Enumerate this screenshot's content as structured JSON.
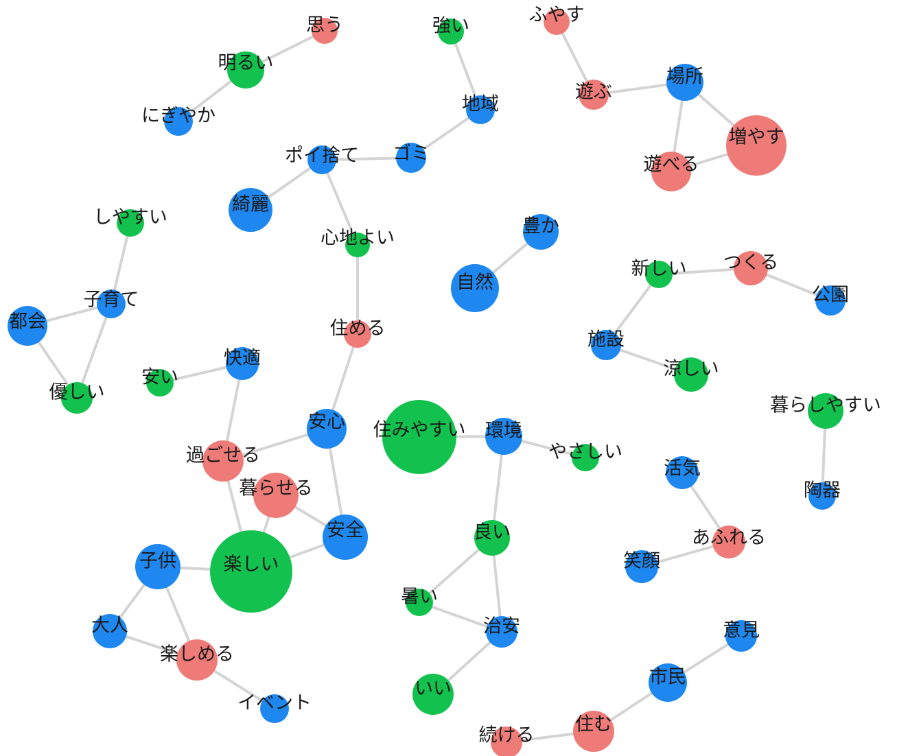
{
  "colors": {
    "noun": "#1e88f0",
    "verb": "#ee7b78",
    "adjective": "#13c24e",
    "edge": "#d4d4d4"
  },
  "nodes": [
    {
      "id": "omou",
      "label": "思う",
      "type": "verb"
    },
    {
      "id": "akarui",
      "label": "明るい",
      "type": "adjective"
    },
    {
      "id": "nigiyaka",
      "label": "にぎやか",
      "type": "noun"
    },
    {
      "id": "tsuyoi",
      "label": "強い",
      "type": "adjective"
    },
    {
      "id": "chiiki",
      "label": "地域",
      "type": "noun"
    },
    {
      "id": "gomi",
      "label": "ゴミ",
      "type": "noun"
    },
    {
      "id": "poisute",
      "label": "ポイ捨て",
      "type": "noun"
    },
    {
      "id": "kirei",
      "label": "綺麗",
      "type": "noun"
    },
    {
      "id": "kokochiyoi",
      "label": "心地よい",
      "type": "adjective"
    },
    {
      "id": "sumeru",
      "label": "住める",
      "type": "verb"
    },
    {
      "id": "anshin",
      "label": "安心",
      "type": "noun"
    },
    {
      "id": "fuyasu",
      "label": "ふやす",
      "type": "verb"
    },
    {
      "id": "asobu",
      "label": "遊ぶ",
      "type": "verb"
    },
    {
      "id": "basho",
      "label": "場所",
      "type": "noun"
    },
    {
      "id": "fuyasu2",
      "label": "増やす",
      "type": "verb"
    },
    {
      "id": "asoberu",
      "label": "遊べる",
      "type": "verb"
    },
    {
      "id": "shiyasui",
      "label": "しやすい",
      "type": "adjective"
    },
    {
      "id": "kosodate",
      "label": "子育て",
      "type": "noun"
    },
    {
      "id": "tokai",
      "label": "都会",
      "type": "noun"
    },
    {
      "id": "yasashii1",
      "label": "優しい",
      "type": "adjective"
    },
    {
      "id": "yutaka",
      "label": "豊か",
      "type": "noun"
    },
    {
      "id": "shizen",
      "label": "自然",
      "type": "noun"
    },
    {
      "id": "atarashii",
      "label": "新しい",
      "type": "adjective"
    },
    {
      "id": "tsukuru",
      "label": "つくる",
      "type": "verb"
    },
    {
      "id": "kouen",
      "label": "公園",
      "type": "noun"
    },
    {
      "id": "shisetsu",
      "label": "施設",
      "type": "noun"
    },
    {
      "id": "suzushii",
      "label": "涼しい",
      "type": "adjective"
    },
    {
      "id": "yasui",
      "label": "安い",
      "type": "adjective"
    },
    {
      "id": "kaiteki",
      "label": "快適",
      "type": "noun"
    },
    {
      "id": "sugoseru",
      "label": "過ごせる",
      "type": "verb"
    },
    {
      "id": "kuraseru",
      "label": "暮らせる",
      "type": "verb"
    },
    {
      "id": "anzen",
      "label": "安全",
      "type": "noun"
    },
    {
      "id": "tanoshii",
      "label": "楽しい",
      "type": "adjective"
    },
    {
      "id": "sumiyasui",
      "label": "住みやすい",
      "type": "adjective"
    },
    {
      "id": "kankyou",
      "label": "環境",
      "type": "noun"
    },
    {
      "id": "yasashii2",
      "label": "やさしい",
      "type": "adjective"
    },
    {
      "id": "yoi",
      "label": "良い",
      "type": "adjective"
    },
    {
      "id": "atsui",
      "label": "暑い",
      "type": "adjective"
    },
    {
      "id": "chian",
      "label": "治安",
      "type": "noun"
    },
    {
      "id": "ii",
      "label": "いい",
      "type": "adjective"
    },
    {
      "id": "kodomo",
      "label": "子供",
      "type": "noun"
    },
    {
      "id": "otona",
      "label": "大人",
      "type": "noun"
    },
    {
      "id": "tanoshimeru",
      "label": "楽しめる",
      "type": "verb"
    },
    {
      "id": "ibento",
      "label": "イベント",
      "type": "noun"
    },
    {
      "id": "kurashiyasui",
      "label": "暮らしやすい",
      "type": "adjective"
    },
    {
      "id": "touki",
      "label": "陶器",
      "type": "noun"
    },
    {
      "id": "kakki",
      "label": "活気",
      "type": "noun"
    },
    {
      "id": "afureru",
      "label": "あふれる",
      "type": "verb"
    },
    {
      "id": "egao",
      "label": "笑顔",
      "type": "noun"
    },
    {
      "id": "iken",
      "label": "意見",
      "type": "noun"
    },
    {
      "id": "shimin",
      "label": "市民",
      "type": "noun"
    },
    {
      "id": "sumu",
      "label": "住む",
      "type": "verb"
    },
    {
      "id": "tsuzukeru",
      "label": "続ける",
      "type": "verb"
    }
  ],
  "edges": [
    [
      "omou",
      "akarui"
    ],
    [
      "akarui",
      "nigiyaka"
    ],
    [
      "tsuyoi",
      "chiiki"
    ],
    [
      "chiiki",
      "gomi"
    ],
    [
      "gomi",
      "poisute"
    ],
    [
      "poisute",
      "kirei"
    ],
    [
      "poisute",
      "kokochiyoi"
    ],
    [
      "kokochiyoi",
      "sumeru"
    ],
    [
      "sumeru",
      "anshin"
    ],
    [
      "anshin",
      "sugoseru"
    ],
    [
      "anshin",
      "anzen"
    ],
    [
      "fuyasu",
      "asobu"
    ],
    [
      "asobu",
      "basho"
    ],
    [
      "basho",
      "fuyasu2"
    ],
    [
      "basho",
      "asoberu"
    ],
    [
      "asoberu",
      "fuyasu2"
    ],
    [
      "shiyasui",
      "kosodate"
    ],
    [
      "kosodate",
      "tokai"
    ],
    [
      "kosodate",
      "yasashii1"
    ],
    [
      "tokai",
      "yasashii1"
    ],
    [
      "yutaka",
      "shizen"
    ],
    [
      "atarashii",
      "tsukuru"
    ],
    [
      "tsukuru",
      "kouen"
    ],
    [
      "atarashii",
      "shisetsu"
    ],
    [
      "shisetsu",
      "suzushii"
    ],
    [
      "yasui",
      "kaiteki"
    ],
    [
      "kaiteki",
      "sugoseru"
    ],
    [
      "sugoseru",
      "tanoshii"
    ],
    [
      "kuraseru",
      "tanoshii"
    ],
    [
      "kuraseru",
      "anzen"
    ],
    [
      "anzen",
      "tanoshii"
    ],
    [
      "tanoshii",
      "kodomo"
    ],
    [
      "sumiyasui",
      "kankyou"
    ],
    [
      "kankyou",
      "yasashii2"
    ],
    [
      "kankyou",
      "yoi"
    ],
    [
      "yoi",
      "atsui"
    ],
    [
      "yoi",
      "chian"
    ],
    [
      "atsui",
      "chian"
    ],
    [
      "chian",
      "ii"
    ],
    [
      "kodomo",
      "otona"
    ],
    [
      "kodomo",
      "tanoshimeru"
    ],
    [
      "otona",
      "tanoshimeru"
    ],
    [
      "tanoshimeru",
      "ibento"
    ],
    [
      "kurashiyasui",
      "touki"
    ],
    [
      "kakki",
      "afureru"
    ],
    [
      "afureru",
      "egao"
    ],
    [
      "iken",
      "shimin"
    ],
    [
      "shimin",
      "sumu"
    ],
    [
      "sumu",
      "tsuzukeru"
    ]
  ]
}
